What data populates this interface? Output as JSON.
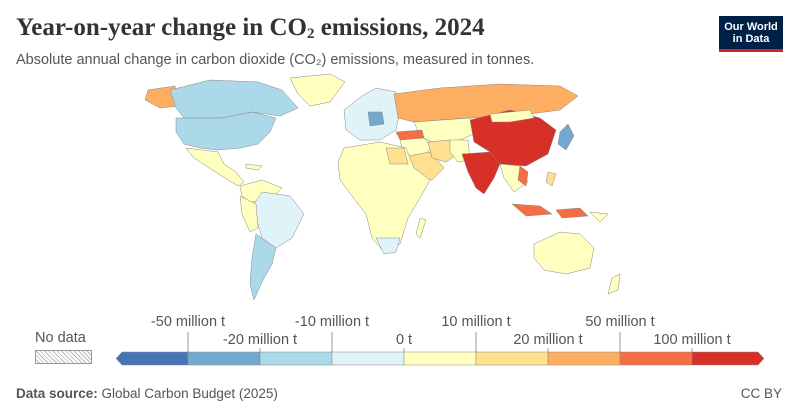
{
  "header": {
    "title_prefix": "Year-on-year change in CO",
    "title_sub": "2",
    "title_suffix": " emissions, 2024",
    "subtitle": "Absolute annual change in carbon dioxide (CO₂) emissions, measured in tonnes."
  },
  "logo": {
    "line1": "Our World",
    "line2": "in Data",
    "bg": "#002147",
    "accent": "#ce261e"
  },
  "legend": {
    "no_data_label": "No data",
    "labels_top": [
      "-50 million t",
      "-10 million t",
      "10 million t",
      "50 million t"
    ],
    "labels_bottom": [
      "-20 million t",
      "0 t",
      "20 million t",
      "100 million t"
    ],
    "colors": [
      "#4575b4",
      "#74a9cf",
      "#abd9e9",
      "#e0f3f8",
      "#ffffbf",
      "#fee090",
      "#fdae61",
      "#f46d43",
      "#d73027"
    ]
  },
  "map_data": {
    "type": "choropleth",
    "regions": [
      {
        "name": "China",
        "color": "#d73027"
      },
      {
        "name": "India",
        "color": "#d73027"
      },
      {
        "name": "Russia",
        "color": "#fdae61"
      },
      {
        "name": "Indonesia",
        "color": "#f46d43"
      },
      {
        "name": "Turkey",
        "color": "#f46d43"
      },
      {
        "name": "Vietnam",
        "color": "#f46d43"
      },
      {
        "name": "Saudi Arabia",
        "color": "#fee090"
      },
      {
        "name": "Iran",
        "color": "#fee090"
      },
      {
        "name": "Alaska",
        "color": "#fdae61"
      },
      {
        "name": "United States",
        "color": "#abd9e9"
      },
      {
        "name": "Canada",
        "color": "#abd9e9"
      },
      {
        "name": "Japan",
        "color": "#74a9cf"
      },
      {
        "name": "Germany",
        "color": "#74a9cf"
      },
      {
        "name": "Mexico",
        "color": "#ffffbf"
      },
      {
        "name": "Brazil",
        "color": "#e0f3f8"
      },
      {
        "name": "Australia",
        "color": "#ffffbf"
      },
      {
        "name": "Africa",
        "color": "#ffffbf"
      },
      {
        "name": "Europe",
        "color": "#e0f3f8"
      },
      {
        "name": "Kazakhstan",
        "color": "#ffffbf"
      },
      {
        "name": "Argentina",
        "color": "#abd9e9"
      }
    ]
  },
  "footer": {
    "source_label": "Data source:",
    "source_text": " Global Carbon Budget (2025)",
    "license": "CC BY"
  }
}
